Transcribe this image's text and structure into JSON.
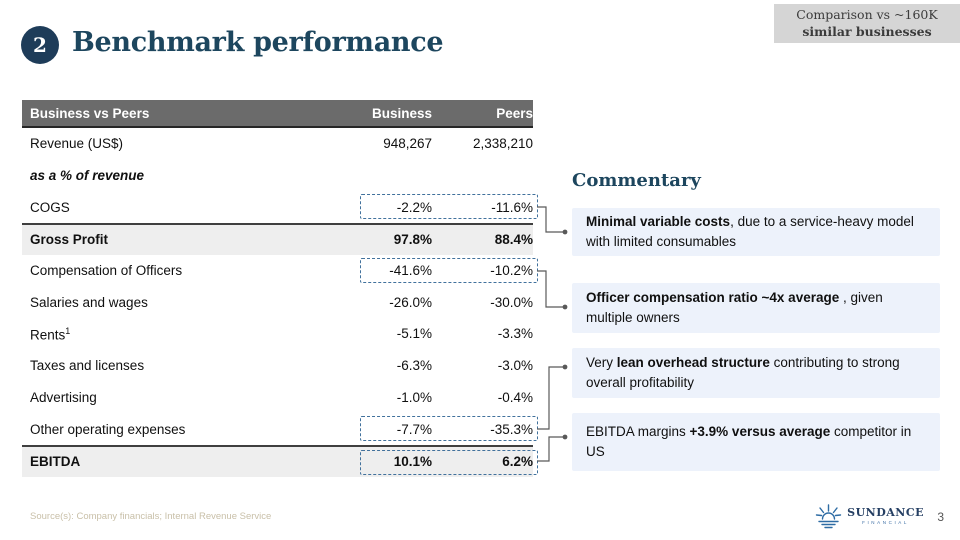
{
  "slide": {
    "number_badge": "2",
    "title": "Benchmark performance",
    "tag_line1": "Comparison vs ~160K",
    "tag_line2": "similar businesses",
    "source": "Source(s): Company financials; Internal Revenue Service",
    "page_number": "3"
  },
  "table": {
    "header": {
      "label": "Business vs Peers",
      "col_business": "Business",
      "col_peers": "Peers"
    },
    "rows": [
      {
        "label": "Revenue (US$)",
        "business": "948,267",
        "peers": "2,338,210"
      },
      {
        "label": "as a % of revenue",
        "business": "",
        "peers": "",
        "style": "section"
      },
      {
        "label": "COGS",
        "business": "-2.2%",
        "peers": "-11.6%",
        "highlight": true
      },
      {
        "label": "Gross Profit",
        "business": "97.8%",
        "peers": "88.4%",
        "style": "total"
      },
      {
        "label": "Compensation of Officers",
        "business": "-41.6%",
        "peers": "-10.2%",
        "highlight": true
      },
      {
        "label": "Salaries and wages",
        "business": "-26.0%",
        "peers": "-30.0%"
      },
      {
        "label": "Rents",
        "sup": "1",
        "business": "-5.1%",
        "peers": "-3.3%"
      },
      {
        "label": "Taxes and licenses",
        "business": "-6.3%",
        "peers": "-3.0%"
      },
      {
        "label": "Advertising",
        "business": "-1.0%",
        "peers": "-0.4%"
      },
      {
        "label": "Other operating expenses",
        "business": "-7.7%",
        "peers": "-35.3%",
        "highlight": true
      },
      {
        "label": "EBITDA",
        "business": "10.1%",
        "peers": "6.2%",
        "style": "total",
        "highlight": true
      }
    ]
  },
  "commentary": {
    "heading": "Commentary",
    "notes": [
      {
        "segments": [
          {
            "bold": true,
            "text": "Minimal variable costs"
          },
          {
            "bold": false,
            "text": ", due to a service-heavy model with limited consumables"
          }
        ]
      },
      {
        "segments": [
          {
            "bold": true,
            "text": "Officer compensation ratio ~4x average"
          },
          {
            "bold": false,
            "text": " , given multiple owners"
          }
        ]
      },
      {
        "segments": [
          {
            "bold": false,
            "text": "Very "
          },
          {
            "bold": true,
            "text": "lean overhead structure"
          },
          {
            "bold": false,
            "text": " contributing to strong overall profitability"
          }
        ]
      },
      {
        "segments": [
          {
            "bold": false,
            "text": "EBITDA margins "
          },
          {
            "bold": true,
            "text": "+3.9% versus average"
          },
          {
            "bold": false,
            "text": " competitor in US"
          }
        ]
      }
    ]
  },
  "logo": {
    "name": "SUNDANCE",
    "sub": "FINANCIAL",
    "icon": "sunrise-logo-icon"
  },
  "colors": {
    "accent_navy": "#1e3c59",
    "title_color": "#1d465e",
    "table_header_bg": "#6b6b6b",
    "total_row_bg": "#eeeeee",
    "dashed_highlight": "#41719c",
    "note_bg": "#edf2fb",
    "connector_gray": "#595959",
    "tag_bg": "#d5d5d5",
    "source_text": "#c9c0a9",
    "logo_blue": "#2e6ca4"
  }
}
